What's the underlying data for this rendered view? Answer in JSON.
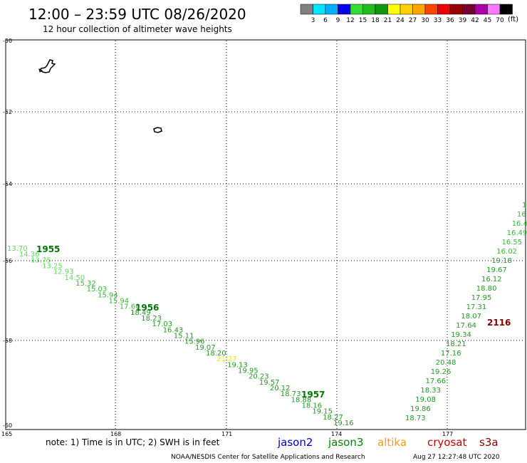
{
  "header": {
    "title": "12:00 – 23:59 UTC 08/26/2020",
    "subtitle": "12 hour collection of altimeter wave heights"
  },
  "legend": {
    "colors": [
      "#808080",
      "#00e5ff",
      "#00b0ff",
      "#0000ee",
      "#33dd33",
      "#22bb22",
      "#119911",
      "#ffff00",
      "#ffd000",
      "#ffa500",
      "#ff4500",
      "#ee0000",
      "#990000",
      "#770033",
      "#aa00aa",
      "#ff77ff",
      "#000000"
    ],
    "labels": [
      "3",
      "6",
      "9",
      "12",
      "15",
      "18",
      "21",
      "24",
      "27",
      "30",
      "33",
      "36",
      "39",
      "42",
      "45",
      "70"
    ],
    "unit": "(ft)"
  },
  "axes": {
    "lat_labels": [
      "-50",
      "-52",
      "-54",
      "-56",
      "-58",
      "-60"
    ],
    "lon_labels": [
      "165",
      "168",
      "171",
      "174",
      "177"
    ]
  },
  "footer": {
    "note": "note: 1) Time is in UTC; 2) SWH is in feet",
    "satellites": [
      {
        "name": "jason2",
        "color": "#0000cc"
      },
      {
        "name": "jason3",
        "color": "#008800"
      },
      {
        "name": "altika",
        "color": "#ff9900"
      },
      {
        "name": "cryosat",
        "color": "#cc0000"
      },
      {
        "name": "s3a",
        "color": "#880000"
      }
    ],
    "credit": "NOAA/NESDIS Center for Satellite Applications and Research",
    "timestamp": "Aug 27 12:27:48 UTC 2020"
  },
  "track_times": [
    {
      "label": "1955",
      "color": "#007700"
    },
    {
      "label": "1956",
      "color": "#007700"
    },
    {
      "label": "1957",
      "color": "#007700"
    },
    {
      "label": "2116",
      "color": "#880000"
    }
  ],
  "track_a": [
    {
      "v": "13.70",
      "c": "#55dd55"
    },
    {
      "v": "14.36",
      "c": "#55dd55"
    },
    {
      "v": "13.75",
      "c": "#55dd55"
    },
    {
      "v": "13.25",
      "c": "#55dd55"
    },
    {
      "v": "12.93",
      "c": "#55dd55"
    },
    {
      "v": "14.50",
      "c": "#55dd55"
    },
    {
      "v": "15.32",
      "c": "#33bb33"
    },
    {
      "v": "15.03",
      "c": "#33bb33"
    },
    {
      "v": "15.94",
      "c": "#33bb33"
    },
    {
      "v": "15.94",
      "c": "#33bb33"
    },
    {
      "v": "17.60",
      "c": "#33bb33"
    },
    {
      "v": "18.49",
      "c": "#229922"
    },
    {
      "v": "18.23",
      "c": "#229922"
    },
    {
      "v": "17.03",
      "c": "#229922"
    },
    {
      "v": "16.43",
      "c": "#229922"
    },
    {
      "v": "15.11",
      "c": "#229922"
    },
    {
      "v": "15.96",
      "c": "#229922"
    },
    {
      "v": "19.07",
      "c": "#229922"
    },
    {
      "v": "18.20",
      "c": "#229922"
    },
    {
      "v": "21.27",
      "c": "#eeee00"
    },
    {
      "v": "19.13",
      "c": "#229922"
    },
    {
      "v": "19.95",
      "c": "#229922"
    },
    {
      "v": "20.23",
      "c": "#229922"
    },
    {
      "v": "19.57",
      "c": "#229922"
    },
    {
      "v": "20.12",
      "c": "#229922"
    },
    {
      "v": "18.73",
      "c": "#229922"
    },
    {
      "v": "18.88",
      "c": "#229922"
    },
    {
      "v": "18.16",
      "c": "#229922"
    },
    {
      "v": "19.15",
      "c": "#229922"
    },
    {
      "v": "18.27",
      "c": "#229922"
    },
    {
      "v": "19.16",
      "c": "#229922"
    }
  ],
  "track_b": [
    {
      "v": "18.73",
      "c": "#229922"
    },
    {
      "v": "19.86",
      "c": "#229922"
    },
    {
      "v": "19.08",
      "c": "#229922"
    },
    {
      "v": "18.33",
      "c": "#229922"
    },
    {
      "v": "17.66",
      "c": "#229922"
    },
    {
      "v": "19.26",
      "c": "#229922"
    },
    {
      "v": "20.48",
      "c": "#229922"
    },
    {
      "v": "17.16",
      "c": "#229922"
    },
    {
      "v": "18.21",
      "c": "#229922"
    },
    {
      "v": "19.34",
      "c": "#229922"
    },
    {
      "v": "17.64",
      "c": "#229922"
    },
    {
      "v": "18.07",
      "c": "#229922"
    },
    {
      "v": "17.31",
      "c": "#229922"
    },
    {
      "v": "17.95",
      "c": "#229922"
    },
    {
      "v": "18.80",
      "c": "#229922"
    },
    {
      "v": "16.12",
      "c": "#229922"
    },
    {
      "v": "19.67",
      "c": "#229922"
    },
    {
      "v": "19.18",
      "c": "#229922"
    },
    {
      "v": "16.02",
      "c": "#33bb33"
    },
    {
      "v": "16.55",
      "c": "#33bb33"
    },
    {
      "v": "16.49",
      "c": "#33bb33"
    },
    {
      "v": "16.4",
      "c": "#33bb33"
    },
    {
      "v": "16",
      "c": "#33bb33"
    },
    {
      "v": "1",
      "c": "#33bb33"
    }
  ]
}
